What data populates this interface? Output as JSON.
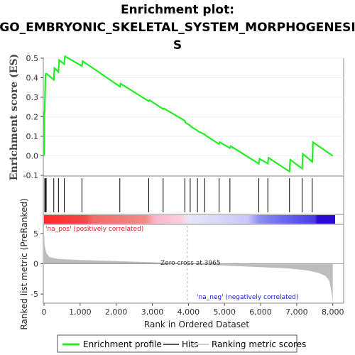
{
  "title_line1": "Enrichment plot:",
  "title_line2": "GO_EMBRYONIC_SKELETAL_SYSTEM_MORPHOGENESI",
  "title_line3": "S",
  "colors": {
    "enrichment_line": "#22ee22",
    "hits": "#000000",
    "pos_label": "#dd2222",
    "neg_label": "#2222cc",
    "metric_fill": "#bdbdbd"
  },
  "chart_data": {
    "type": "line",
    "es_panel": {
      "ylabel": "Enrichment score (ES)",
      "ylim": [
        -0.1,
        0.5
      ],
      "yticks": [
        "-0.1",
        "0.0",
        "0.1",
        "0.2",
        "0.3",
        "0.4",
        "0.5"
      ],
      "series": [
        {
          "name": "Enrichment profile",
          "x": [
            0,
            10,
            20,
            40,
            50,
            60,
            80,
            270,
            290,
            400,
            420,
            560,
            580,
            1050,
            1070,
            2100,
            2120,
            2900,
            2920,
            3300,
            3320,
            3900,
            3920,
            4050,
            4070,
            4250,
            4270,
            4450,
            4470,
            4850,
            4870,
            5150,
            5170,
            5950,
            5970,
            6200,
            6220,
            6800,
            6820,
            7150,
            7170,
            7430,
            7450,
            8000
          ],
          "y": [
            0.0,
            0.22,
            0.23,
            0.41,
            0.42,
            0.42,
            0.42,
            0.39,
            0.45,
            0.43,
            0.49,
            0.47,
            0.51,
            0.46,
            0.485,
            0.355,
            0.37,
            0.28,
            0.285,
            0.24,
            0.243,
            0.18,
            0.17,
            0.155,
            0.15,
            0.13,
            0.125,
            0.11,
            0.105,
            0.06,
            0.07,
            0.04,
            0.05,
            -0.04,
            -0.015,
            -0.04,
            -0.01,
            -0.08,
            -0.02,
            -0.065,
            0.01,
            -0.03,
            0.07,
            0.0
          ]
        }
      ],
      "hits": [
        20,
        45,
        60,
        270,
        400,
        560,
        1050,
        2100,
        2900,
        3300,
        3900,
        4050,
        4250,
        4450,
        4850,
        5150,
        5950,
        6200,
        6800,
        7150,
        7430
      ]
    },
    "ranked_panel": {
      "ylabel": "Ranked list metric (PreRanked)",
      "ylim": [
        -6.5,
        6.5
      ],
      "yticks": [
        "5",
        "0",
        "-5"
      ],
      "xlabel": "Rank in Ordered Dataset",
      "xlim": [
        0,
        8300
      ],
      "xticks": [
        "0",
        "1,000",
        "2,000",
        "3,000",
        "4,000",
        "5,000",
        "6,000",
        "7,000",
        "8,000"
      ],
      "zero_cross": 3965,
      "metric_profile": {
        "rank": [
          0,
          20,
          60,
          150,
          400,
          1000,
          2000,
          3000,
          3965,
          5000,
          6000,
          6800,
          7300,
          7600,
          7800,
          7900,
          7960,
          8000
        ],
        "value": [
          5.0,
          3.0,
          1.8,
          1.1,
          0.8,
          0.62,
          0.45,
          0.25,
          0.0,
          -0.3,
          -0.55,
          -0.8,
          -1.1,
          -1.5,
          -2.0,
          -2.8,
          -4.5,
          -6.2
        ]
      },
      "zero_cross_label": "Zero cross at 3965",
      "pos_label": "'na_pos' (positively correlated)",
      "neg_label": "'na_neg' (negatively correlated)"
    },
    "legend": [
      {
        "name": "Enrichment profile",
        "color": "#22ee22"
      },
      {
        "name": "Hits",
        "color": "#555555"
      },
      {
        "name": "Ranking metric scores",
        "color": "#cccccc"
      }
    ]
  }
}
